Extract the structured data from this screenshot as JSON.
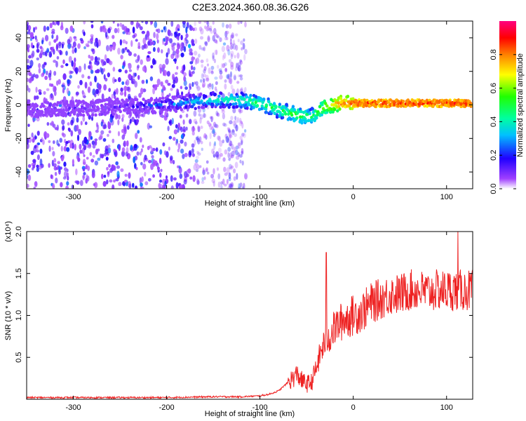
{
  "title": "C2E3.2024.360.08.36.G26",
  "chart_data": [
    {
      "type": "heatmap",
      "xlabel": "Height of straight line (km)",
      "ylabel": "Frequency (Hz)",
      "xlim": [
        -350,
        128
      ],
      "ylim": [
        -50,
        50
      ],
      "x_ticks": [
        -300,
        -200,
        -100,
        0,
        100
      ],
      "y_ticks": [
        -40,
        -20,
        0,
        20,
        40
      ],
      "colorbar": {
        "label": "Normalized spectral amplitude",
        "range": [
          0,
          1
        ],
        "ticks": [
          "0.0",
          "0.2",
          "0.4",
          "0.6",
          "0.8"
        ],
        "colors": [
          "#ffffff",
          "#8a00ff",
          "#0000ff",
          "#00ffff",
          "#00ff00",
          "#ffff00",
          "#ff8000",
          "#ff0000",
          "#ff0080"
        ]
      },
      "ridge": {
        "x": [
          -350,
          -300,
          -250,
          -200,
          -150,
          -120,
          -100,
          -80,
          -60,
          -45,
          -30,
          -15,
          0,
          50,
          128
        ],
        "frequency": [
          -3,
          -2,
          -1,
          0,
          3,
          3,
          1,
          -3,
          -6,
          -7,
          -1,
          1,
          1,
          1,
          1
        ],
        "amplitude": [
          0.1,
          0.15,
          0.2,
          0.3,
          0.45,
          0.5,
          0.55,
          0.55,
          0.6,
          0.55,
          0.7,
          0.85,
          0.9,
          0.92,
          0.92
        ]
      }
    },
    {
      "type": "line",
      "xlabel": "Height of straight line (km)",
      "ylabel": "SNR (10 * v/v)",
      "y_multiplier": "(x10⁴)",
      "xlim": [
        -350,
        128
      ],
      "ylim": [
        0,
        2.0
      ],
      "x_ticks": [
        -300,
        -200,
        -100,
        0,
        100
      ],
      "y_ticks": [
        "0.5",
        "1.0",
        "1.5",
        "2.0"
      ],
      "color": "#ee2222",
      "series": [
        {
          "x": [
            -350,
            -300,
            -250,
            -200,
            -150,
            -120,
            -100,
            -90,
            -80,
            -70,
            -65,
            -60,
            -55,
            -50,
            -45,
            -40,
            -35,
            -30,
            -25,
            -20,
            -10,
            0,
            10,
            20,
            30,
            40,
            50,
            60,
            70,
            80,
            90,
            100,
            110,
            120,
            128
          ],
          "values": [
            0.02,
            0.02,
            0.02,
            0.02,
            0.03,
            0.03,
            0.04,
            0.06,
            0.1,
            0.2,
            0.25,
            0.3,
            0.22,
            0.18,
            0.2,
            0.35,
            0.55,
            0.7,
            0.75,
            0.85,
            0.95,
            1.0,
            1.05,
            1.15,
            1.2,
            1.25,
            1.25,
            1.3,
            1.3,
            1.28,
            1.3,
            1.3,
            1.3,
            1.3,
            1.3
          ]
        }
      ],
      "spikes": [
        {
          "x": -29,
          "value": 1.75
        },
        {
          "x": 112,
          "value": 2.0
        }
      ]
    }
  ]
}
